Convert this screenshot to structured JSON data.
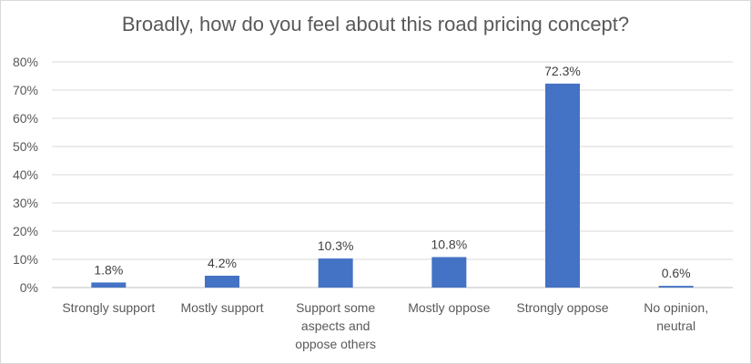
{
  "chart_data": {
    "type": "bar",
    "title": "Broadly, how do you feel about this road pricing concept?",
    "categories": [
      [
        "Strongly support"
      ],
      [
        "Mostly support"
      ],
      [
        "Support some",
        "aspects and",
        "oppose others"
      ],
      [
        "Mostly oppose"
      ],
      [
        "Strongly oppose"
      ],
      [
        "No opinion,",
        "neutral"
      ]
    ],
    "values": [
      1.8,
      4.2,
      10.3,
      10.8,
      72.3,
      0.6
    ],
    "data_labels": [
      "1.8%",
      "4.2%",
      "10.3%",
      "10.8%",
      "72.3%",
      "0.6%"
    ],
    "y_ticks": [
      "0%",
      "10%",
      "20%",
      "30%",
      "40%",
      "50%",
      "60%",
      "70%",
      "80%"
    ],
    "ylim": [
      0,
      80
    ],
    "grid": true,
    "bar_color": "#4472c4",
    "grid_color": "#d9d9d9",
    "legend": "none"
  }
}
